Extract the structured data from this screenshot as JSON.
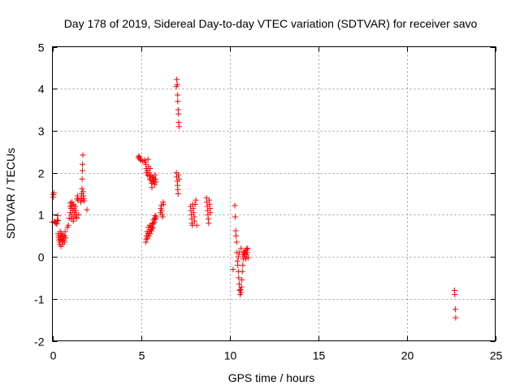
{
  "chart_data": {
    "type": "scatter",
    "title": "Day 178 of 2019, Sidereal Day-to-day VTEC variation (SDTVAR) for receiver savo",
    "xlabel": "GPS time / hours",
    "ylabel": "SDTVAR / TECUs",
    "xlim": [
      0,
      25
    ],
    "ylim": [
      -2,
      5
    ],
    "x_ticks": [
      0,
      5,
      10,
      15,
      20,
      25
    ],
    "y_ticks": [
      -2,
      -1,
      0,
      1,
      2,
      3,
      4,
      5
    ],
    "grid": true,
    "marker": "plus",
    "color": "#ff0000",
    "points": [
      [
        0.0,
        0.82
      ],
      [
        0.05,
        1.42
      ],
      [
        0.05,
        1.48
      ],
      [
        0.08,
        1.52
      ],
      [
        0.1,
        0.84
      ],
      [
        0.15,
        0.83
      ],
      [
        0.2,
        0.8
      ],
      [
        0.25,
        0.78
      ],
      [
        0.28,
        0.87
      ],
      [
        0.3,
        0.98
      ],
      [
        0.32,
        0.86
      ],
      [
        0.33,
        0.55
      ],
      [
        0.35,
        0.5
      ],
      [
        0.36,
        0.45
      ],
      [
        0.38,
        0.4
      ],
      [
        0.4,
        0.35
      ],
      [
        0.42,
        0.3
      ],
      [
        0.44,
        0.6
      ],
      [
        0.45,
        0.5
      ],
      [
        0.47,
        0.42
      ],
      [
        0.48,
        0.25
      ],
      [
        0.5,
        0.55
      ],
      [
        0.52,
        0.48
      ],
      [
        0.55,
        0.38
      ],
      [
        0.58,
        0.3
      ],
      [
        0.6,
        0.52
      ],
      [
        0.62,
        0.45
      ],
      [
        0.65,
        0.4
      ],
      [
        0.68,
        0.35
      ],
      [
        0.7,
        0.5
      ],
      [
        0.72,
        0.6
      ],
      [
        0.75,
        0.45
      ],
      [
        0.85,
        0.7
      ],
      [
        0.9,
        0.75
      ],
      [
        0.95,
        0.92
      ],
      [
        1.0,
        1.05
      ],
      [
        1.0,
        1.2
      ],
      [
        1.02,
        1.28
      ],
      [
        1.05,
        1.15
      ],
      [
        1.07,
        1.0
      ],
      [
        1.08,
        0.9
      ],
      [
        1.1,
        1.3
      ],
      [
        1.12,
        1.22
      ],
      [
        1.15,
        1.1
      ],
      [
        1.17,
        0.95
      ],
      [
        1.18,
        0.85
      ],
      [
        1.2,
        1.25
      ],
      [
        1.22,
        1.15
      ],
      [
        1.25,
        1.05
      ],
      [
        1.27,
        0.95
      ],
      [
        1.3,
        1.2
      ],
      [
        1.32,
        1.1
      ],
      [
        1.35,
        1.0
      ],
      [
        1.38,
        0.92
      ],
      [
        1.4,
        1.38
      ],
      [
        1.42,
        1.45
      ],
      [
        1.45,
        1.35
      ],
      [
        1.48,
        1.0
      ],
      [
        1.6,
        1.3
      ],
      [
        1.62,
        1.35
      ],
      [
        1.63,
        1.4
      ],
      [
        1.65,
        1.5
      ],
      [
        1.67,
        1.62
      ],
      [
        1.68,
        1.85
      ],
      [
        1.7,
        2.05
      ],
      [
        1.7,
        2.2
      ],
      [
        1.72,
        2.42
      ],
      [
        1.73,
        1.55
      ],
      [
        1.75,
        1.45
      ],
      [
        1.77,
        1.38
      ],
      [
        1.8,
        1.33
      ],
      [
        1.95,
        1.12
      ],
      [
        4.85,
        2.35
      ],
      [
        4.88,
        2.4
      ],
      [
        4.9,
        2.38
      ],
      [
        4.95,
        2.32
      ],
      [
        5.0,
        2.3
      ],
      [
        5.1,
        2.28
      ],
      [
        5.2,
        2.3
      ],
      [
        5.25,
        2.25
      ],
      [
        5.27,
        2.2
      ],
      [
        5.3,
        2.1
      ],
      [
        5.32,
        2.0
      ],
      [
        5.35,
        2.05
      ],
      [
        5.37,
        1.95
      ],
      [
        5.4,
        2.32
      ],
      [
        5.42,
        2.15
      ],
      [
        5.45,
        2.0
      ],
      [
        5.47,
        1.92
      ],
      [
        5.5,
        1.85
      ],
      [
        5.52,
        2.1
      ],
      [
        5.55,
        1.95
      ],
      [
        5.57,
        1.82
      ],
      [
        5.6,
        1.75
      ],
      [
        5.62,
        1.65
      ],
      [
        5.65,
        1.9
      ],
      [
        5.67,
        1.8
      ],
      [
        5.7,
        1.88
      ],
      [
        5.72,
        1.78
      ],
      [
        5.75,
        1.85
      ],
      [
        5.78,
        1.72
      ],
      [
        5.8,
        1.95
      ],
      [
        5.82,
        1.85
      ],
      [
        5.85,
        1.78
      ],
      [
        5.28,
        0.35
      ],
      [
        5.3,
        0.42
      ],
      [
        5.32,
        0.5
      ],
      [
        5.35,
        0.6
      ],
      [
        5.37,
        0.45
      ],
      [
        5.4,
        0.55
      ],
      [
        5.42,
        0.7
      ],
      [
        5.45,
        0.5
      ],
      [
        5.47,
        0.6
      ],
      [
        5.5,
        0.75
      ],
      [
        5.52,
        0.55
      ],
      [
        5.55,
        0.65
      ],
      [
        5.57,
        0.72
      ],
      [
        5.6,
        0.62
      ],
      [
        5.62,
        0.7
      ],
      [
        5.65,
        0.8
      ],
      [
        5.67,
        0.68
      ],
      [
        5.7,
        0.78
      ],
      [
        5.72,
        0.88
      ],
      [
        5.75,
        0.82
      ],
      [
        5.77,
        0.92
      ],
      [
        5.8,
        0.98
      ],
      [
        5.82,
        0.9
      ],
      [
        5.85,
        0.95
      ],
      [
        6.1,
        1.05
      ],
      [
        6.12,
        1.15
      ],
      [
        6.15,
        1.22
      ],
      [
        6.17,
        1.1
      ],
      [
        6.2,
        1.0
      ],
      [
        6.22,
        0.95
      ],
      [
        6.25,
        1.3
      ],
      [
        6.27,
        1.25
      ],
      [
        7.0,
        4.05
      ],
      [
        7.02,
        4.22
      ],
      [
        7.05,
        4.1
      ],
      [
        7.07,
        3.85
      ],
      [
        7.08,
        3.7
      ],
      [
        7.1,
        3.5
      ],
      [
        7.12,
        3.4
      ],
      [
        7.13,
        3.2
      ],
      [
        7.15,
        3.1
      ],
      [
        7.0,
        2.0
      ],
      [
        7.02,
        1.9
      ],
      [
        7.05,
        1.8
      ],
      [
        7.07,
        1.7
      ],
      [
        7.08,
        1.6
      ],
      [
        7.1,
        1.5
      ],
      [
        7.12,
        1.95
      ],
      [
        7.15,
        1.85
      ],
      [
        7.8,
        1.2
      ],
      [
        7.82,
        1.1
      ],
      [
        7.85,
        1.0
      ],
      [
        7.87,
        0.9
      ],
      [
        7.88,
        0.8
      ],
      [
        7.9,
        0.75
      ],
      [
        7.92,
        1.25
      ],
      [
        7.95,
        1.15
      ],
      [
        7.97,
        1.05
      ],
      [
        8.0,
        0.95
      ],
      [
        8.02,
        0.85
      ],
      [
        8.05,
        1.25
      ],
      [
        8.1,
        1.35
      ],
      [
        8.15,
        0.75
      ],
      [
        8.7,
        1.4
      ],
      [
        8.72,
        1.3
      ],
      [
        8.75,
        1.2
      ],
      [
        8.77,
        1.1
      ],
      [
        8.78,
        1.0
      ],
      [
        8.8,
        0.9
      ],
      [
        8.82,
        0.8
      ],
      [
        8.85,
        1.35
      ],
      [
        8.87,
        1.25
      ],
      [
        8.9,
        1.15
      ],
      [
        8.92,
        1.05
      ],
      [
        10.2,
        -0.3
      ],
      [
        10.3,
        1.22
      ],
      [
        10.32,
        0.95
      ],
      [
        10.35,
        0.62
      ],
      [
        10.37,
        0.5
      ],
      [
        10.4,
        0.35
      ],
      [
        10.42,
        0.1
      ],
      [
        10.45,
        -0.1
      ],
      [
        10.47,
        -0.2
      ],
      [
        10.5,
        -0.35
      ],
      [
        10.52,
        -0.5
      ],
      [
        10.55,
        -0.65
      ],
      [
        10.57,
        -0.8
      ],
      [
        10.6,
        -0.9
      ],
      [
        10.62,
        -0.78
      ],
      [
        10.65,
        -0.85
      ],
      [
        10.67,
        -0.72
      ],
      [
        10.7,
        -0.55
      ],
      [
        10.72,
        -0.35
      ],
      [
        10.75,
        -0.2
      ],
      [
        10.77,
        -0.05
      ],
      [
        10.8,
        0.05
      ],
      [
        10.82,
        0.12
      ],
      [
        10.85,
        0.0
      ],
      [
        10.87,
        0.08
      ],
      [
        10.9,
        0.15
      ],
      [
        10.92,
        -0.05
      ],
      [
        10.95,
        0.05
      ],
      [
        10.97,
        0.18
      ],
      [
        11.0,
        0.1
      ],
      [
        11.02,
        0.2
      ],
      [
        11.05,
        -0.02
      ],
      [
        10.5,
        0.0
      ],
      [
        10.55,
        0.1
      ],
      [
        10.65,
        0.2
      ],
      [
        10.75,
        0.05
      ],
      [
        22.7,
        -0.8
      ],
      [
        22.72,
        -0.9
      ],
      [
        22.75,
        -1.25
      ],
      [
        22.77,
        -1.45
      ]
    ]
  }
}
